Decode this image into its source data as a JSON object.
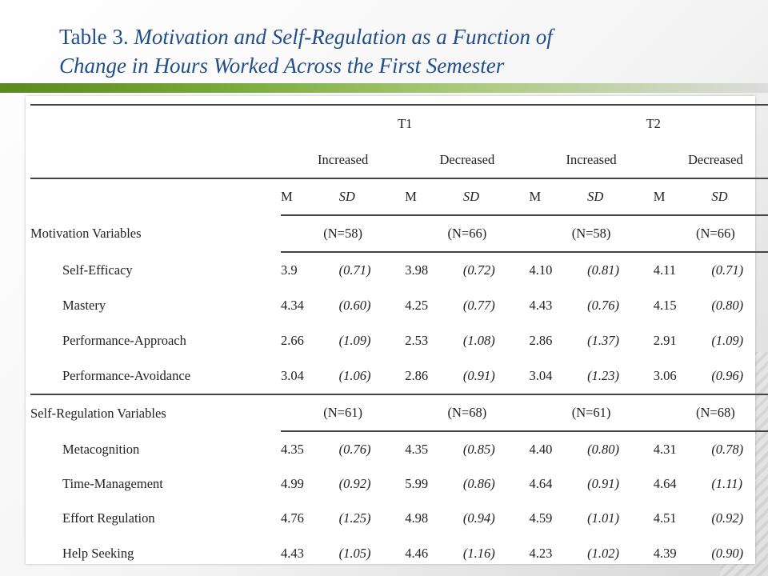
{
  "slide": {
    "title_lead": "Table 3.",
    "title_italic_line1": "Motivation and Self-Regulation as a Function of",
    "title_italic_line2": "Change in Hours Worked Across the First Semester"
  },
  "colors": {
    "title": "#1f4e8a",
    "accent_bar": "#5a8a1e"
  },
  "table": {
    "time_points": [
      "T1",
      "T2"
    ],
    "groups": [
      "Increased",
      "Decreased",
      "Increased",
      "Decreased"
    ],
    "stat_labels": {
      "m": "M",
      "sd": "SD"
    },
    "sections": [
      {
        "label": "Motivation Variables",
        "ns": [
          "(N=58)",
          "(N=66)",
          "(N=58)",
          "(N=66)"
        ],
        "rows": [
          {
            "label": "Self-Efficacy",
            "values": [
              "3.9",
              "(0.71)",
              "3.98",
              "(0.72)",
              "4.10",
              "(0.81)",
              "4.11",
              "(0.71)"
            ]
          },
          {
            "label": "Mastery",
            "values": [
              "4.34",
              "(0.60)",
              "4.25",
              "(0.77)",
              "4.43",
              "(0.76)",
              "4.15",
              "(0.80)"
            ]
          },
          {
            "label": "Performance-Approach",
            "values": [
              "2.66",
              "(1.09)",
              "2.53",
              "(1.08)",
              "2.86",
              "(1.37)",
              "2.91",
              "(1.09)"
            ]
          },
          {
            "label": "Performance-Avoidance",
            "values": [
              "3.04",
              "(1.06)",
              "2.86",
              "(0.91)",
              "3.04",
              "(1.23)",
              "3.06",
              "(0.96)"
            ]
          }
        ]
      },
      {
        "label": "Self-Regulation Variables",
        "ns": [
          "(N=61)",
          "(N=68)",
          "(N=61)",
          "(N=68)"
        ],
        "rows": [
          {
            "label": "Metacognition",
            "values": [
              "4.35",
              "(0.76)",
              "4.35",
              "(0.85)",
              "4.40",
              "(0.80)",
              "4.31",
              "(0.78)"
            ]
          },
          {
            "label": "Time-Management",
            "values": [
              "4.99",
              "(0.92)",
              "5.99",
              "(0.86)",
              "4.64",
              "(0.91)",
              "4.64",
              "(1.11)"
            ]
          },
          {
            "label": "Effort Regulation",
            "values": [
              "4.76",
              "(1.25)",
              "4.98",
              "(0.94)",
              "4.59",
              "(1.01)",
              "4.51",
              "(0.92)"
            ]
          },
          {
            "label": "Help Seeking",
            "values": [
              "4.43",
              "(1.05)",
              "4.46",
              "(1.16)",
              "4.23",
              "(1.02)",
              "4.39",
              "(0.90)"
            ]
          }
        ]
      }
    ]
  }
}
